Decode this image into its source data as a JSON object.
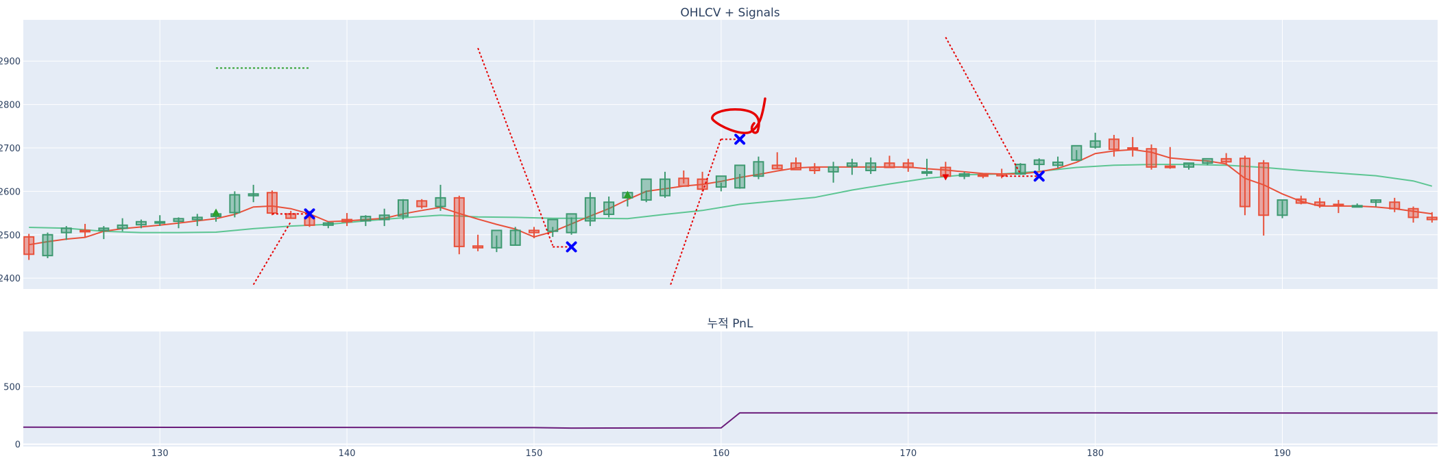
{
  "chart_data": [
    {
      "type": "candlestick",
      "title": "OHLCV + Signals",
      "xlim": [
        122.7,
        198.3
      ],
      "ylim": [
        2375,
        2995
      ],
      "yticks": [
        2400,
        2500,
        2600,
        2700,
        2800,
        2900
      ],
      "grid": true,
      "colors": {
        "up": "#3d9970",
        "down": "#e8503a",
        "ma_fast": "#e8503a",
        "ma_slow": "#5cc592",
        "sell_marker": "#0000ff",
        "buy_marker": "#2ca02c",
        "annotation": "#e60000"
      },
      "candles": {
        "x": [
          123,
          124,
          125,
          126,
          127,
          128,
          129,
          130,
          131,
          132,
          133,
          134,
          135,
          136,
          137,
          138,
          139,
          140,
          141,
          142,
          143,
          144,
          145,
          146,
          147,
          148,
          149,
          150,
          151,
          152,
          153,
          154,
          155,
          156,
          157,
          158,
          159,
          160,
          161,
          162,
          163,
          164,
          165,
          166,
          167,
          168,
          169,
          170,
          171,
          172,
          173,
          174,
          175,
          176,
          177,
          178,
          179,
          180,
          181,
          182,
          183,
          184,
          185,
          186,
          187,
          188,
          189,
          190,
          191,
          192,
          193,
          194,
          195,
          196,
          197,
          198
        ],
        "open": [
          2495,
          2452,
          2505,
          2510,
          2510,
          2515,
          2523,
          2528,
          2531,
          2535,
          2542,
          2551,
          2590,
          2597,
          2548,
          2540,
          2522,
          2535,
          2532,
          2535,
          2543,
          2578,
          2565,
          2585,
          2474,
          2470,
          2476,
          2510,
          2508,
          2505,
          2532,
          2547,
          2585,
          2580,
          2590,
          2630,
          2628,
          2610,
          2608,
          2635,
          2660,
          2665,
          2655,
          2645,
          2658,
          2648,
          2665,
          2665,
          2645,
          2655,
          2635,
          2638,
          2640,
          2640,
          2662,
          2660,
          2672,
          2702,
          2720,
          2700,
          2698,
          2658,
          2656,
          2665,
          2675,
          2676,
          2665,
          2545,
          2582,
          2575,
          2570,
          2567,
          2575,
          2575,
          2560,
          2540
        ],
        "high": [
          2502,
          2505,
          2520,
          2525,
          2520,
          2538,
          2535,
          2545,
          2540,
          2548,
          2555,
          2600,
          2615,
          2602,
          2555,
          2555,
          2530,
          2550,
          2545,
          2560,
          2582,
          2582,
          2615,
          2590,
          2500,
          2498,
          2518,
          2518,
          2518,
          2540,
          2598,
          2588,
          2598,
          2602,
          2645,
          2648,
          2645,
          2620,
          2640,
          2680,
          2690,
          2678,
          2665,
          2668,
          2675,
          2678,
          2682,
          2675,
          2675,
          2668,
          2645,
          2642,
          2652,
          2665,
          2676,
          2680,
          2695,
          2735,
          2730,
          2725,
          2708,
          2702,
          2662,
          2668,
          2688,
          2682,
          2672,
          2578,
          2590,
          2585,
          2580,
          2572,
          2580,
          2585,
          2565,
          2552
        ],
        "low": [
          2442,
          2446,
          2488,
          2495,
          2490,
          2508,
          2515,
          2520,
          2515,
          2520,
          2530,
          2540,
          2575,
          2545,
          2538,
          2518,
          2515,
          2520,
          2520,
          2520,
          2535,
          2560,
          2555,
          2455,
          2462,
          2460,
          2475,
          2492,
          2495,
          2500,
          2520,
          2540,
          2565,
          2575,
          2585,
          2618,
          2600,
          2600,
          2606,
          2628,
          2652,
          2655,
          2640,
          2620,
          2638,
          2640,
          2658,
          2645,
          2635,
          2628,
          2628,
          2630,
          2630,
          2638,
          2648,
          2654,
          2670,
          2698,
          2680,
          2680,
          2650,
          2652,
          2650,
          2660,
          2660,
          2545,
          2498,
          2538,
          2570,
          2562,
          2550,
          2565,
          2565,
          2552,
          2528,
          2528
        ],
        "close": [
          2455,
          2500,
          2515,
          2508,
          2515,
          2522,
          2530,
          2530,
          2537,
          2540,
          2548,
          2592,
          2594,
          2550,
          2538,
          2522,
          2527,
          2530,
          2542,
          2545,
          2580,
          2565,
          2585,
          2473,
          2470,
          2510,
          2510,
          2505,
          2535,
          2548,
          2585,
          2575,
          2597,
          2628,
          2628,
          2612,
          2605,
          2635,
          2660,
          2668,
          2652,
          2650,
          2648,
          2656,
          2665,
          2665,
          2655,
          2655,
          2645,
          2635,
          2640,
          2635,
          2636,
          2662,
          2672,
          2667,
          2705,
          2716,
          2697,
          2697,
          2656,
          2655,
          2665,
          2675,
          2668,
          2565,
          2545,
          2580,
          2573,
          2568,
          2567,
          2567,
          2580,
          2560,
          2540,
          2535
        ]
      },
      "ma_fast": {
        "x": [
          123,
          124,
          125,
          126,
          127,
          128,
          129,
          130,
          131,
          132,
          133,
          134,
          135,
          136,
          137,
          138,
          139,
          140,
          141,
          142,
          143,
          144,
          145,
          146,
          147,
          148,
          149,
          150,
          151,
          152,
          153,
          154,
          155,
          156,
          157,
          158,
          159,
          160,
          161,
          162,
          163,
          164,
          165,
          166,
          167,
          168,
          169,
          170,
          171,
          172,
          173,
          174,
          175,
          176,
          177,
          178,
          179,
          180,
          181,
          182,
          183,
          184,
          185,
          186,
          187,
          188,
          189,
          190,
          191,
          192,
          193,
          194,
          195,
          196,
          197,
          198
        ],
        "y": [
          2477,
          2484,
          2490,
          2494,
          2508,
          2514,
          2518,
          2522,
          2527,
          2532,
          2537,
          2547,
          2564,
          2566,
          2560,
          2548,
          2530,
          2532,
          2535,
          2538,
          2548,
          2556,
          2563,
          2549,
          2536,
          2524,
          2513,
          2495,
          2507,
          2525,
          2543,
          2560,
          2581,
          2600,
          2606,
          2612,
          2616,
          2623,
          2632,
          2639,
          2647,
          2654,
          2656,
          2656,
          2656,
          2656,
          2656,
          2656,
          2652,
          2649,
          2645,
          2641,
          2640,
          2640,
          2645,
          2653,
          2667,
          2687,
          2693,
          2696,
          2690,
          2677,
          2673,
          2670,
          2663,
          2630,
          2615,
          2594,
          2577,
          2566,
          2566,
          2566,
          2564,
          2560,
          2554,
          2548
        ]
      },
      "ma_slow": {
        "x": [
          123,
          125,
          127,
          129,
          131,
          133,
          135,
          137,
          139,
          141,
          143,
          145,
          147,
          149,
          151,
          153,
          155,
          157,
          159,
          161,
          163,
          165,
          167,
          169,
          171,
          173,
          175,
          177,
          179,
          181,
          183,
          185,
          187,
          189,
          191,
          193,
          195,
          197,
          198
        ],
        "y": [
          2517,
          2515,
          2508,
          2505,
          2505,
          2506,
          2514,
          2520,
          2524,
          2532,
          2539,
          2545,
          2541,
          2540,
          2538,
          2538,
          2537,
          2547,
          2556,
          2570,
          2578,
          2586,
          2603,
          2617,
          2630,
          2638,
          2640,
          2646,
          2655,
          2660,
          2662,
          2662,
          2660,
          2655,
          2648,
          2642,
          2636,
          2624,
          2612
        ]
      },
      "sell_signals": [
        {
          "x": 138,
          "y": 2548
        },
        {
          "x": 152,
          "y": 2472
        },
        {
          "x": 161,
          "y": 2720
        },
        {
          "x": 177,
          "y": 2635
        }
      ],
      "buy_signals": [
        {
          "x": 133,
          "y": 2551
        },
        {
          "x": 155,
          "y": 2592
        }
      ],
      "red_down_markers": [
        {
          "x": 172,
          "y": 2633
        }
      ],
      "target_lines": [
        {
          "x": [
            133,
            138
          ],
          "y": [
            2884,
            2884
          ],
          "color": "#2ca02c"
        },
        {
          "x": [
            136,
            138
          ],
          "y": [
            2548,
            2548
          ],
          "color": "#e60000"
        },
        {
          "x": [
            151,
            152
          ],
          "y": [
            2472,
            2472
          ],
          "color": "#e60000"
        },
        {
          "x": [
            160,
            161
          ],
          "y": [
            2720,
            2720
          ],
          "color": "#e60000"
        },
        {
          "x": [
            175,
            177
          ],
          "y": [
            2635,
            2635
          ],
          "color": "#e60000"
        }
      ],
      "trend_lines": [
        {
          "x": [
            135,
            137
          ],
          "y": [
            2385,
            2530
          ],
          "color": "#e60000"
        },
        {
          "x": [
            147,
            151
          ],
          "y": [
            2930,
            2475
          ],
          "color": "#e60000"
        },
        {
          "x": [
            157.3,
            160
          ],
          "y": [
            2385,
            2722
          ],
          "color": "#e60000"
        },
        {
          "x": [
            172,
            176
          ],
          "y": [
            2955,
            2640
          ],
          "color": "#e60000"
        }
      ]
    },
    {
      "type": "line",
      "title": "누적 PnL",
      "xlim": [
        122.7,
        198.3
      ],
      "ylim": [
        -20,
        980
      ],
      "yticks": [
        0,
        500
      ],
      "xticks": [
        130,
        140,
        150,
        160,
        170,
        180,
        190
      ],
      "grid": true,
      "series": [
        {
          "color": "#6a1b7a",
          "x": [
            122.7,
            140,
            150,
            152,
            160,
            161,
            180,
            198.3
          ],
          "y": [
            148,
            146,
            144,
            140,
            142,
            272,
            272,
            270
          ]
        }
      ]
    }
  ]
}
